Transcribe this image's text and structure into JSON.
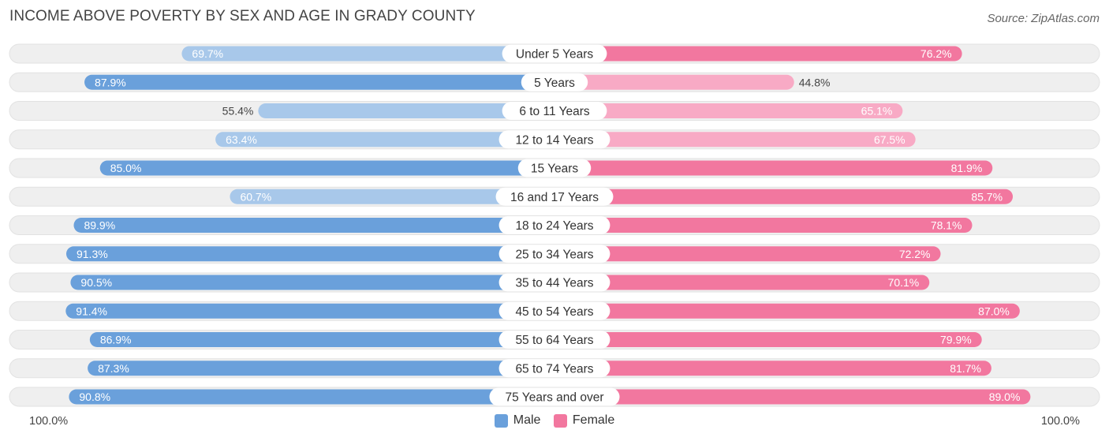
{
  "title": "INCOME ABOVE POVERTY BY SEX AND AGE IN GRADY COUNTY",
  "source": "Source: ZipAtlas.com",
  "axis": {
    "left_label": "100.0%",
    "right_label": "100.0%"
  },
  "legend": {
    "male_label": "Male",
    "female_label": "Female"
  },
  "colors": {
    "male_strong": "#6aa0db",
    "male_light": "#a8c8ea",
    "female_strong": "#f2779f",
    "female_light": "#f8aac5",
    "track": "#efefef"
  },
  "chart_data": {
    "type": "bar",
    "orientation": "horizontal-diverging",
    "title": "INCOME ABOVE POVERTY BY SEX AND AGE IN GRADY COUNTY",
    "xlim": [
      -100,
      100
    ],
    "categories": [
      "Under 5 Years",
      "5 Years",
      "6 to 11 Years",
      "12 to 14 Years",
      "15 Years",
      "16 and 17 Years",
      "18 to 24 Years",
      "25 to 34 Years",
      "35 to 44 Years",
      "45 to 54 Years",
      "55 to 64 Years",
      "65 to 74 Years",
      "75 Years and over"
    ],
    "series": [
      {
        "name": "Male",
        "values": [
          69.7,
          87.9,
          55.4,
          63.4,
          85.0,
          60.7,
          89.9,
          91.3,
          90.5,
          91.4,
          86.9,
          87.3,
          90.8
        ],
        "labels": [
          "69.7%",
          "87.9%",
          "55.4%",
          "63.4%",
          "85.0%",
          "60.7%",
          "89.9%",
          "91.3%",
          "90.5%",
          "91.4%",
          "86.9%",
          "87.3%",
          "90.8%"
        ]
      },
      {
        "name": "Female",
        "values": [
          76.2,
          44.8,
          65.1,
          67.5,
          81.9,
          85.7,
          78.1,
          72.2,
          70.1,
          87.0,
          79.9,
          81.7,
          89.0
        ],
        "labels": [
          "76.2%",
          "44.8%",
          "65.1%",
          "67.5%",
          "81.9%",
          "85.7%",
          "78.1%",
          "72.2%",
          "70.1%",
          "87.0%",
          "79.9%",
          "81.7%",
          "89.0%"
        ]
      }
    ]
  }
}
